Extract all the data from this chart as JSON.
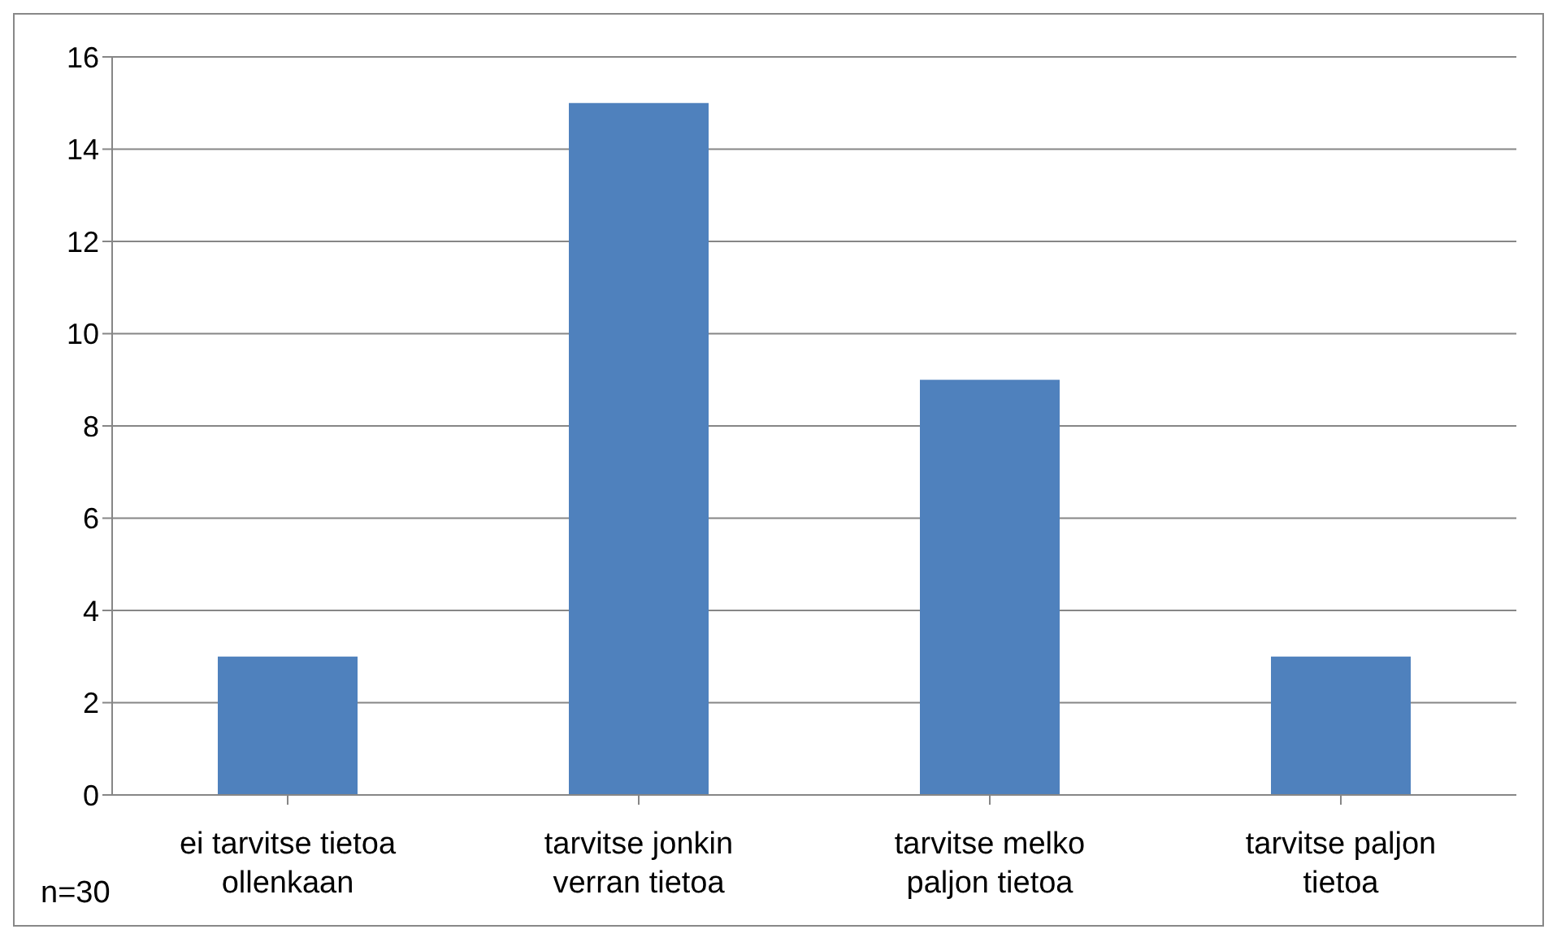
{
  "chart_data": {
    "type": "bar",
    "categories": [
      "ei tarvitse tietoa ollenkaan",
      "tarvitse jonkin verran tietoa",
      "tarvitse melko paljon tietoa",
      "tarvitse paljon tietoa"
    ],
    "values": [
      3,
      15,
      9,
      3
    ],
    "color": "#4f81bd",
    "ylim": [
      0,
      16
    ],
    "yticks": [
      0,
      2,
      4,
      6,
      8,
      10,
      12,
      14,
      16
    ],
    "grid": "y",
    "annotations": [
      "n=30"
    ]
  }
}
